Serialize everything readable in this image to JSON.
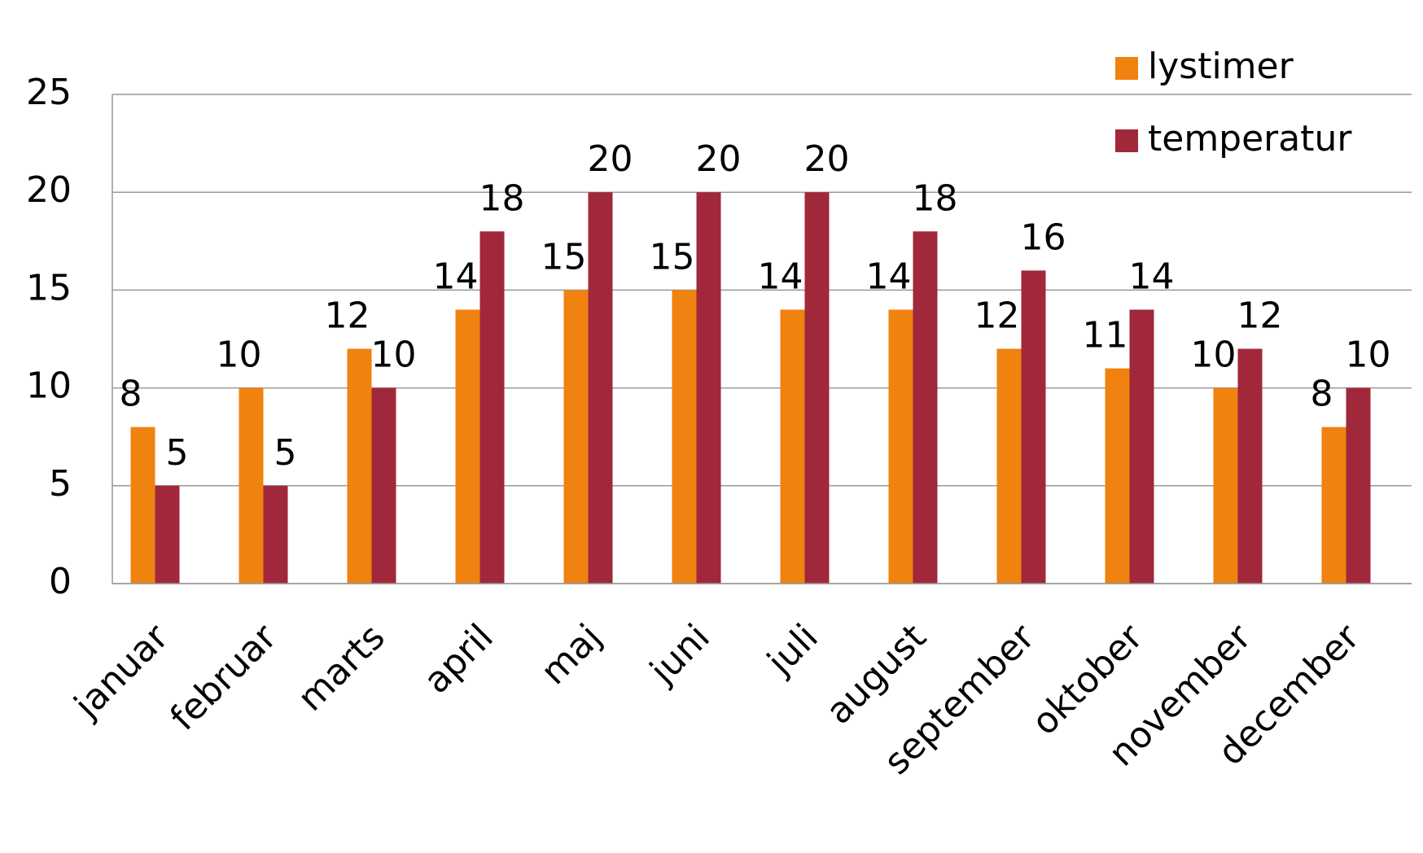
{
  "chart_data": {
    "type": "bar",
    "categories": [
      "januar",
      "februar",
      "marts",
      "april",
      "maj",
      "juni",
      "juli",
      "august",
      "september",
      "oktober",
      "november",
      "december"
    ],
    "series": [
      {
        "name": "lystimer",
        "color": "#f0820f",
        "values": [
          8,
          10,
          12,
          14,
          15,
          15,
          14,
          14,
          12,
          11,
          10,
          8
        ]
      },
      {
        "name": "temperatur",
        "color": "#a0283a",
        "values": [
          5,
          5,
          10,
          18,
          20,
          20,
          20,
          18,
          16,
          14,
          12,
          10
        ]
      }
    ],
    "ylim": [
      0,
      25
    ],
    "yticks": [
      0,
      5,
      10,
      15,
      20,
      25
    ],
    "grid": true,
    "legend": "top-right"
  }
}
